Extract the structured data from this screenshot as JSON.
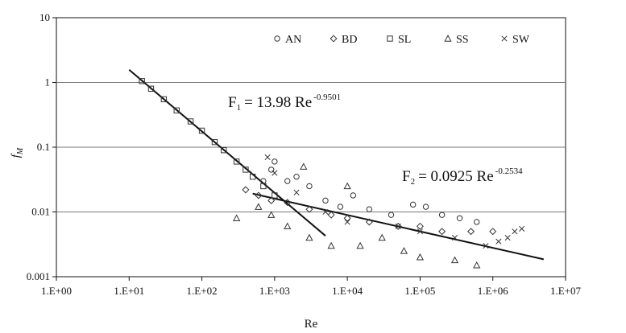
{
  "chart_data": {
    "type": "scatter",
    "title": "",
    "xlabel": "Re",
    "ylabel": "f_M",
    "x_scale": "log",
    "y_scale": "log",
    "xlim": [
      1,
      10000000
    ],
    "ylim": [
      0.001,
      10
    ],
    "x_ticks": [
      "1.E+00",
      "1.E+01",
      "1.E+02",
      "1.E+03",
      "1.E+04",
      "1.E+05",
      "1.E+06",
      "1.E+07"
    ],
    "y_ticks": [
      "0.001",
      "0.01",
      "0.1",
      "1",
      "10"
    ],
    "grid": "horizontal",
    "legend_position": "top-right",
    "series": [
      {
        "name": "AN",
        "marker": "circle",
        "points": [
          [
            700,
            0.03
          ],
          [
            900,
            0.045
          ],
          [
            1000,
            0.06
          ],
          [
            1500,
            0.03
          ],
          [
            2000,
            0.035
          ],
          [
            3000,
            0.025
          ],
          [
            5000,
            0.015
          ],
          [
            8000,
            0.012
          ],
          [
            12000,
            0.018
          ],
          [
            20000,
            0.011
          ],
          [
            40000,
            0.009
          ],
          [
            80000,
            0.013
          ],
          [
            120000,
            0.012
          ],
          [
            200000,
            0.009
          ],
          [
            350000,
            0.008
          ],
          [
            600000,
            0.007
          ]
        ]
      },
      {
        "name": "BD",
        "marker": "diamond",
        "points": [
          [
            400,
            0.022
          ],
          [
            600,
            0.018
          ],
          [
            900,
            0.015
          ],
          [
            1500,
            0.014
          ],
          [
            3000,
            0.011
          ],
          [
            6000,
            0.009
          ],
          [
            10000,
            0.008
          ],
          [
            20000,
            0.007
          ],
          [
            50000,
            0.006
          ],
          [
            100000,
            0.006
          ],
          [
            200000,
            0.005
          ],
          [
            500000,
            0.005
          ],
          [
            1000000,
            0.005
          ]
        ]
      },
      {
        "name": "SL",
        "marker": "square",
        "points": [
          [
            15,
            1.05
          ],
          [
            20,
            0.8
          ],
          [
            30,
            0.55
          ],
          [
            45,
            0.37
          ],
          [
            70,
            0.25
          ],
          [
            100,
            0.18
          ],
          [
            150,
            0.12
          ],
          [
            200,
            0.09
          ],
          [
            300,
            0.06
          ],
          [
            400,
            0.045
          ],
          [
            500,
            0.035
          ],
          [
            700,
            0.025
          ],
          [
            1000,
            0.018
          ]
        ]
      },
      {
        "name": "SS",
        "marker": "triangle",
        "points": [
          [
            300,
            0.008
          ],
          [
            600,
            0.012
          ],
          [
            900,
            0.009
          ],
          [
            1500,
            0.006
          ],
          [
            2500,
            0.05
          ],
          [
            3000,
            0.004
          ],
          [
            6000,
            0.003
          ],
          [
            10000,
            0.025
          ],
          [
            15000,
            0.003
          ],
          [
            30000,
            0.004
          ],
          [
            60000,
            0.0025
          ],
          [
            100000,
            0.002
          ],
          [
            300000,
            0.0018
          ],
          [
            600000,
            0.0015
          ]
        ]
      },
      {
        "name": "SW",
        "marker": "x",
        "points": [
          [
            800,
            0.07
          ],
          [
            1000,
            0.04
          ],
          [
            2000,
            0.02
          ],
          [
            5000,
            0.01
          ],
          [
            10000,
            0.007
          ],
          [
            50000,
            0.006
          ],
          [
            100000,
            0.005
          ],
          [
            300000,
            0.004
          ],
          [
            800000,
            0.003
          ],
          [
            1200000,
            0.0035
          ],
          [
            1600000,
            0.004
          ],
          [
            2000000,
            0.005
          ],
          [
            2500000,
            0.0055
          ]
        ]
      }
    ],
    "fit_lines": [
      {
        "label": "F1",
        "a": 13.98,
        "b": -0.9501,
        "x_range": [
          10,
          5000
        ]
      },
      {
        "label": "F2",
        "a": 0.0925,
        "b": -0.2534,
        "x_range": [
          500,
          5000000
        ]
      }
    ],
    "annotations": {
      "f1": {
        "letter": "F",
        "sub": "1",
        "eq": "= 13.98 Re",
        "exp": "-0.9501"
      },
      "f2": {
        "letter": "F",
        "sub": "2",
        "eq": "= 0.0925 Re",
        "exp": "-0.2534"
      }
    }
  }
}
